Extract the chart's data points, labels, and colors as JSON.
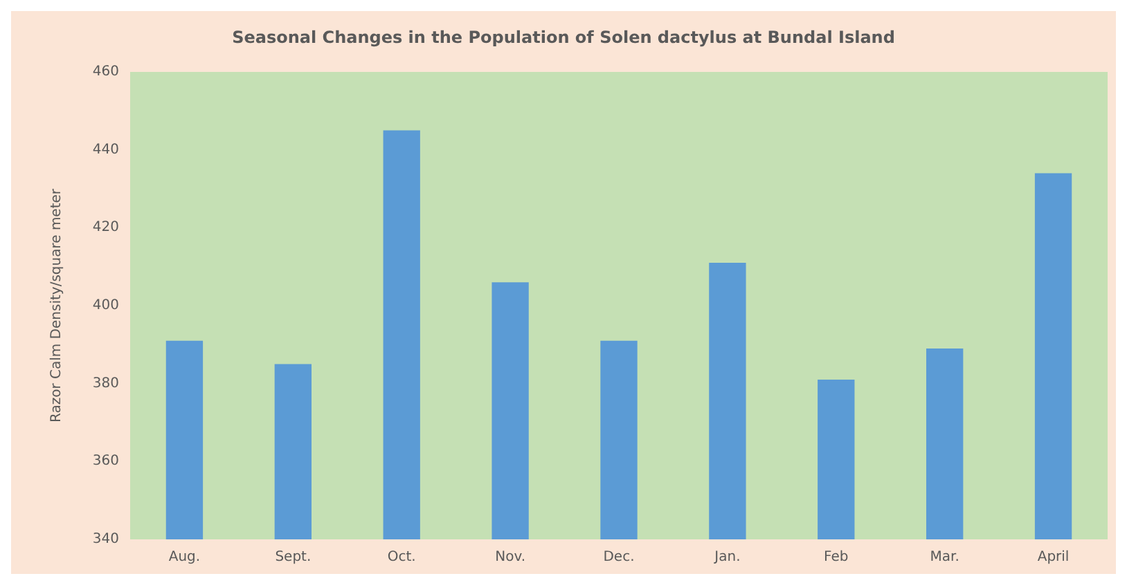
{
  "chart_data": {
    "type": "bar",
    "title": "Seasonal Changes in the Population of Solen dactylus at Bundal Island",
    "ylabel": "Razor Calm Density/square meter",
    "categories": [
      "Aug.",
      "Sept.",
      "Oct.",
      "Nov.",
      "Dec.",
      "Jan.",
      "Feb",
      "Mar.",
      "April"
    ],
    "values": [
      391,
      385,
      445,
      406,
      391,
      411,
      381,
      389,
      434
    ],
    "color": "#5b9bd5",
    "ylim": [
      340,
      460
    ],
    "yticks": [
      340,
      360,
      380,
      400,
      420,
      440,
      460
    ],
    "grid": false
  }
}
